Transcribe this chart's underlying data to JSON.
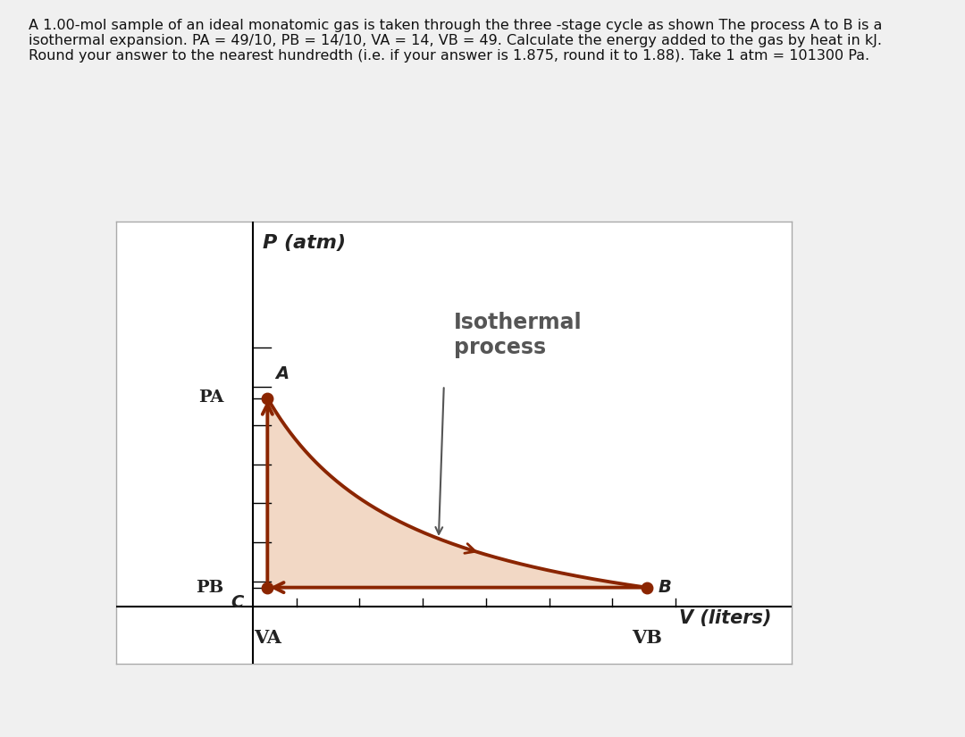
{
  "PA": 4.9,
  "PB": 1.4,
  "VA": 14,
  "VB": 49,
  "title_text": "A 1.00-mol sample of an ideal monatomic gas is taken through the three -stage cycle as shown The process A to B is a\nisothermal expansion. PA = 49/10, PB = 14/10, VA = 14, VB = 49. Calculate the energy added to the gas by heat in kJ.\nRound your answer to the nearest hundredth (i.e. if your answer is 1.875, round it to 1.88). Take 1 atm = 101300 Pa.",
  "bg_color": "#f0f0f0",
  "plot_bg": "#ffffff",
  "curve_color": "#8b2500",
  "fill_color": "#f2d8c5",
  "label_color": "#222222",
  "isothermal_label": "Isothermal\nprocess",
  "x_axis_label": "V (liters)",
  "y_axis_label": "P (atm)",
  "point_A_label": "A",
  "point_B_label": "B",
  "point_C_label": "C",
  "PA_label": "PA",
  "PB_label": "PB",
  "VA_label": "VA",
  "VB_label": "VB",
  "x_min": 0,
  "x_max": 7.0,
  "y_min": 0,
  "y_max": 7.0
}
